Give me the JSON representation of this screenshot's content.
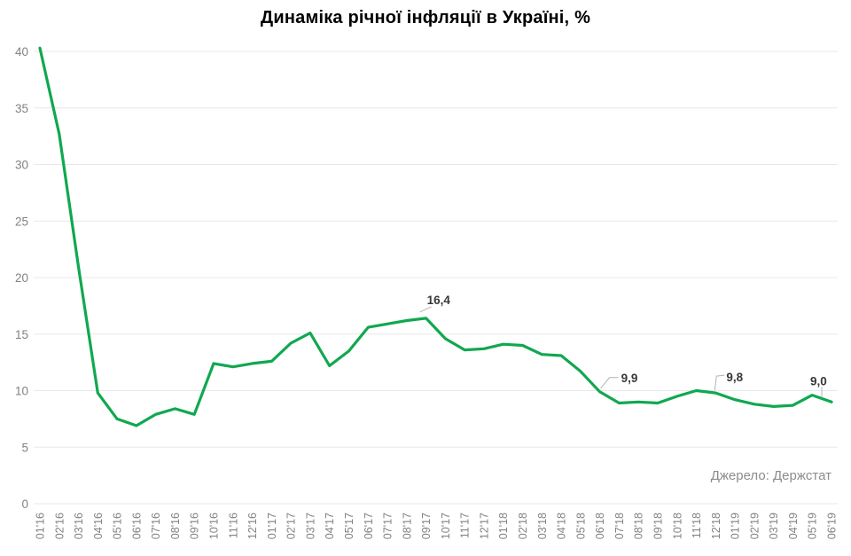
{
  "page": {
    "background": "#ffffff"
  },
  "chart_data": {
    "type": "line",
    "title": "Динаміка річної інфляції в Україні, %",
    "source": "Джерело: Держстат",
    "categories": [
      "01'16",
      "02'16",
      "03'16",
      "04'16",
      "05'16",
      "06'16",
      "07'16",
      "08'16",
      "09'16",
      "10'16",
      "11'16",
      "12'16",
      "01'17",
      "02'17",
      "03'17",
      "04'17",
      "05'17",
      "06'17",
      "07'17",
      "08'17",
      "09'17",
      "10'17",
      "11'17",
      "12'17",
      "01'18",
      "02'18",
      "03'18",
      "04'18",
      "05'18",
      "06'18",
      "07'18",
      "08'18",
      "09'18",
      "10'18",
      "11'18",
      "12'18",
      "01'19",
      "02'19",
      "03'19",
      "04'19",
      "05'19",
      "06'19"
    ],
    "values": [
      40.3,
      32.7,
      20.9,
      9.8,
      7.5,
      6.9,
      7.9,
      8.4,
      7.9,
      12.4,
      12.1,
      12.4,
      12.6,
      14.2,
      15.1,
      12.2,
      13.5,
      15.6,
      15.9,
      16.2,
      16.4,
      14.6,
      13.6,
      13.7,
      14.1,
      14.0,
      13.2,
      13.1,
      11.7,
      9.9,
      8.9,
      9.0,
      8.9,
      9.5,
      10.0,
      9.8,
      9.2,
      8.8,
      8.6,
      8.7,
      9.6,
      9.0
    ],
    "ylim": [
      0,
      40
    ],
    "ytick_step": 5,
    "grid": true,
    "legend": "none",
    "line_color": "#10a850",
    "grid_color": "#e8e8e8",
    "axis_label_color": "#828282",
    "annotation_color": "#383838",
    "leader_color": "#b3b3b3",
    "annotations": [
      {
        "index": 20,
        "text": "16,4",
        "label_offset": [
          1,
          -16
        ],
        "leader": [
          [
            -7,
            -7
          ],
          [
            6,
            -13
          ]
        ]
      },
      {
        "index": 29,
        "text": "9,9",
        "label_offset": [
          24,
          -11
        ],
        "leader": [
          [
            1,
            -4
          ],
          [
            11,
            -16
          ],
          [
            21,
            -16
          ]
        ]
      },
      {
        "index": 35,
        "text": "9,8",
        "label_offset": [
          12,
          -13
        ],
        "leader": [
          [
            -1,
            -3
          ],
          [
            1,
            -19
          ],
          [
            10,
            -20
          ]
        ]
      },
      {
        "index": 41,
        "text": "9,0",
        "label_offset": [
          -24,
          -19
        ],
        "leader": [
          [
            -11,
            -5
          ],
          [
            -11,
            -17
          ]
        ]
      }
    ]
  }
}
